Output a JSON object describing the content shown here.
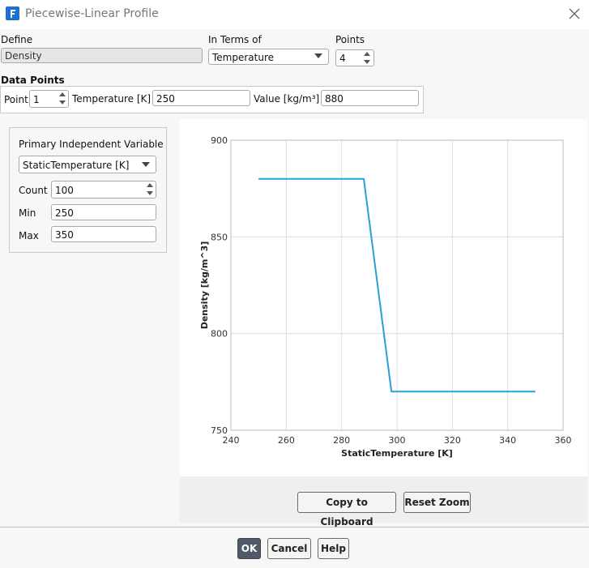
{
  "title": "Piecewise-Linear Profile",
  "define": {
    "label": "Define",
    "value": "Density"
  },
  "in_terms_of": {
    "label": "In Terms of",
    "value": "Temperature"
  },
  "points": {
    "label": "Points",
    "value": 4
  },
  "data_points": {
    "label": "Data Points",
    "point_label": "Point",
    "point_value": 1,
    "temperature_label": "Temperature [K]",
    "temperature_value": 250,
    "value_label": "Value [kg/m³]",
    "value_value": 880
  },
  "panel": {
    "title": "Primary Independent Variable",
    "variable": "StaticTemperature [K]",
    "count_label": "Count",
    "count": 100,
    "min_label": "Min",
    "min": 250,
    "max_label": "Max",
    "max": 350
  },
  "chart_data": {
    "type": "line",
    "x_label": "StaticTemperature [K]",
    "y_label": "Density [kg/m^3]",
    "x": [
      250,
      288,
      298,
      350
    ],
    "values": [
      880,
      880,
      770,
      770
    ],
    "color": "#2a9fd8",
    "xlim": [
      240,
      360
    ],
    "xticks": [
      240,
      260,
      280,
      300,
      320,
      340,
      360
    ],
    "ylim": [
      750,
      900
    ],
    "yticks": [
      750,
      800,
      850,
      900
    ],
    "grid": true
  },
  "buttons": {
    "copy": "Copy to Clipboard",
    "reset": "Reset Zoom",
    "ok": "OK",
    "cancel": "Cancel",
    "help": "Help"
  }
}
